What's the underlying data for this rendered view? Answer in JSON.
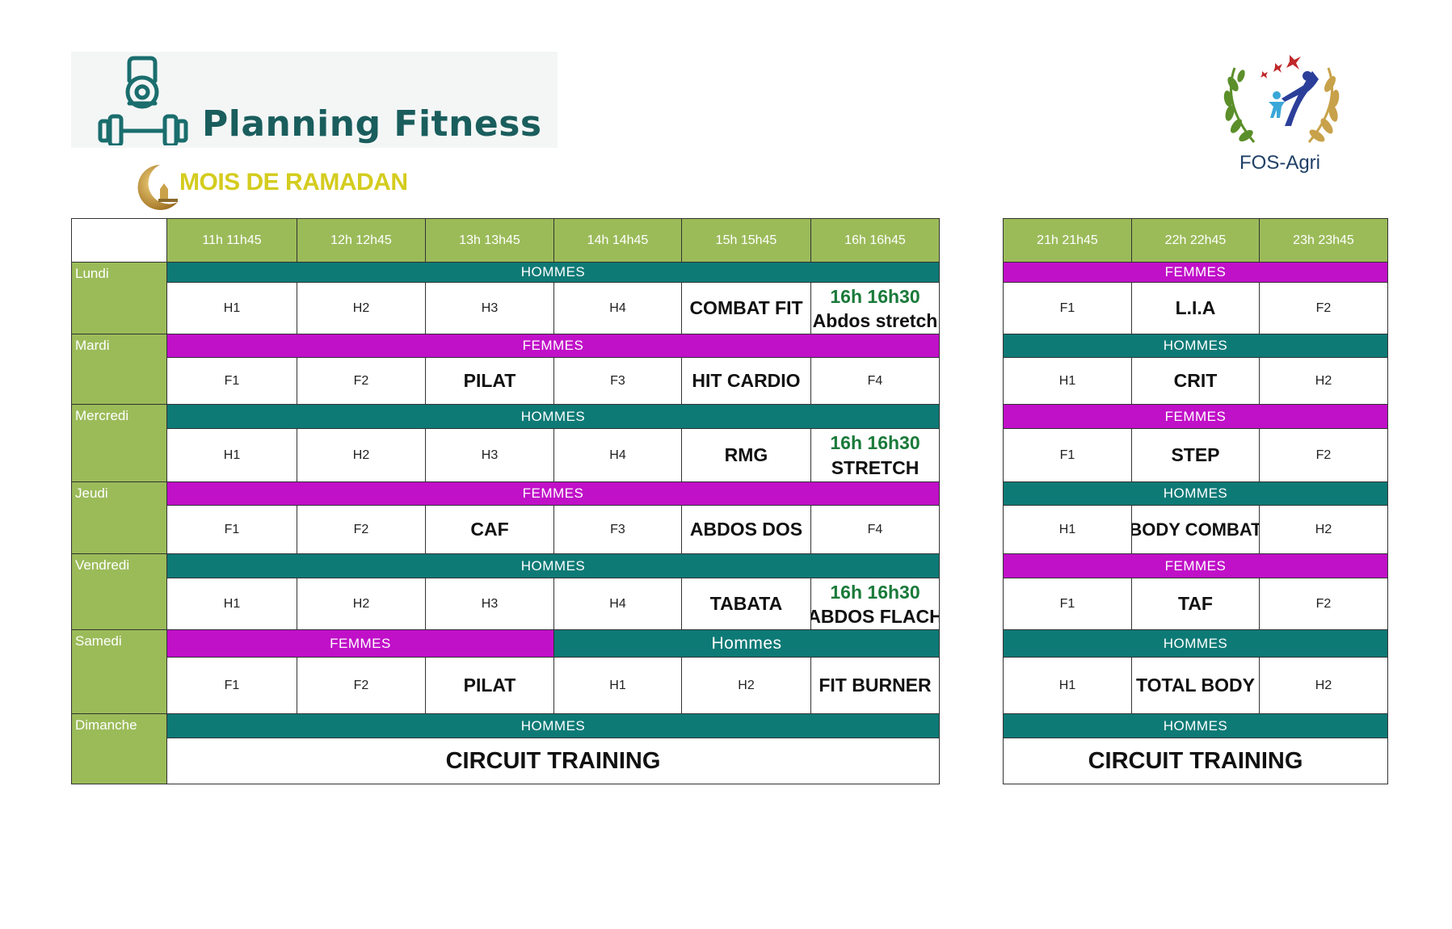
{
  "logo": {
    "title": "Planning Fitness"
  },
  "subtitle": "MOIS DE RAMADAN",
  "partner_logo": {
    "label": "FOS-Agri"
  },
  "table_left": {
    "time_headers": [
      "11h   11h45",
      "12h   12h45",
      "13h   13h45",
      "14h   14h45",
      "15h   15h45",
      "16h   16h45"
    ],
    "days": [
      {
        "name": "Lundi",
        "bands": [
          {
            "label": "HOMMES",
            "color": "#0e7a76"
          }
        ],
        "sessions": [
          "H1",
          "H2",
          "H3",
          "H4",
          "COMBAT FIT",
          {
            "time": "16h 16h30",
            "name": "Abdos stretch"
          }
        ]
      },
      {
        "name": "Mardi",
        "bands": [
          {
            "label": "FEMMES",
            "color": "#c010c8"
          }
        ],
        "sessions": [
          "F1",
          "F2",
          "PILAT",
          "F3",
          "HIT CARDIO",
          "F4"
        ]
      },
      {
        "name": "Mercredi",
        "bands": [
          {
            "label": "HOMMES",
            "color": "#0e7a76"
          }
        ],
        "sessions": [
          "H1",
          "H2",
          "H3",
          "H4",
          "RMG",
          {
            "time": "16h 16h30",
            "name": "STRETCH"
          }
        ]
      },
      {
        "name": "Jeudi",
        "bands": [
          {
            "label": "FEMMES",
            "color": "#c010c8"
          }
        ],
        "sessions": [
          "F1",
          "F2",
          "CAF",
          "F3",
          "ABDOS DOS",
          "F4"
        ]
      },
      {
        "name": "Vendredi",
        "bands": [
          {
            "label": "HOMMES",
            "color": "#0e7a76"
          }
        ],
        "sessions": [
          "H1",
          "H2",
          "H3",
          "H4",
          "TABATA",
          {
            "time": "16h 16h30",
            "name": "ABDOS FLACH"
          }
        ]
      },
      {
        "name": "Samedi",
        "bands": [
          {
            "label": "FEMMES",
            "color": "#c010c8"
          },
          {
            "label": "Hommes",
            "color": "#0e7a76"
          }
        ],
        "sessions": [
          "F1",
          "F2",
          "PILAT",
          "H1",
          "H2",
          "FIT BURNER"
        ]
      },
      {
        "name": "Dimanche",
        "bands": [
          {
            "label": "HOMMES",
            "color": "#0e7a76"
          }
        ],
        "sessions": [
          "CIRCUIT TRAINING"
        ]
      }
    ]
  },
  "table_right": {
    "time_headers": [
      "21h 21h45",
      "22h 22h45",
      "23h 23h45"
    ],
    "days": [
      {
        "band": {
          "label": "FEMMES",
          "color": "#c010c8"
        },
        "sessions": [
          "F1",
          "L.I.A",
          "F2"
        ]
      },
      {
        "band": {
          "label": "HOMMES",
          "color": "#0e7a76"
        },
        "sessions": [
          "H1",
          "CRIT",
          "H2"
        ]
      },
      {
        "band": {
          "label": "FEMMES",
          "color": "#c010c8"
        },
        "sessions": [
          "F1",
          "STEP",
          "F2"
        ]
      },
      {
        "band": {
          "label": "HOMMES",
          "color": "#0e7a76"
        },
        "sessions": [
          "H1",
          "BODY COMBAT",
          "H2"
        ]
      },
      {
        "band": {
          "label": "FEMMES",
          "color": "#c010c8"
        },
        "sessions": [
          "F1",
          "TAF",
          "F2"
        ]
      },
      {
        "band": {
          "label": "HOMMES",
          "color": "#0e7a76"
        },
        "sessions": [
          "H1",
          "TOTAL BODY",
          "H2"
        ]
      },
      {
        "band": {
          "label": "HOMMES",
          "color": "#0e7a76"
        },
        "sessions": [
          "CIRCUIT TRAINING"
        ]
      }
    ]
  }
}
